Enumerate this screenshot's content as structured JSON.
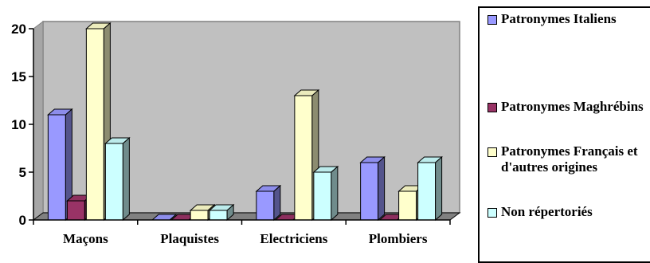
{
  "chart_data": {
    "type": "bar",
    "categories": [
      "Maçons",
      "Plaquistes",
      "Electriciens",
      "Plombiers"
    ],
    "series": [
      {
        "name": "Patronymes Italiens",
        "values": [
          11,
          0,
          3,
          6
        ],
        "color": "#9999ff"
      },
      {
        "name": "Patronymes Maghrébins",
        "values": [
          2,
          0,
          0,
          0
        ],
        "color": "#993366"
      },
      {
        "name": "Patronymes Français et d'autres origines",
        "values": [
          20,
          1,
          13,
          3
        ],
        "color": "#ffffcc"
      },
      {
        "name": "Non répertoriés",
        "values": [
          8,
          1,
          5,
          6
        ],
        "color": "#ccffff"
      }
    ],
    "ylim": [
      0,
      20
    ],
    "yticks": [
      "0",
      "5",
      "10",
      "15",
      "20"
    ],
    "grid": false,
    "legend_position": "right",
    "plot_background": "#c0c0c0",
    "style": "3d-clustered-bar"
  }
}
